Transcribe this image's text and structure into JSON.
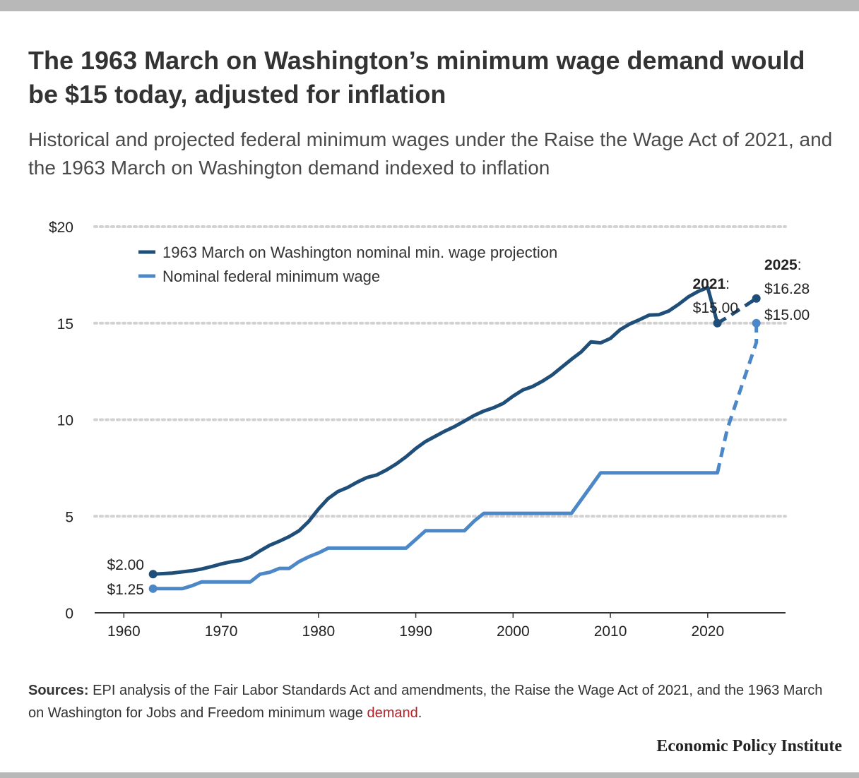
{
  "header": {
    "title": "The 1963 March on Washington’s minimum wage demand would be $15 today, adjusted for inflation",
    "subtitle": "Historical and projected federal minimum wages under the Raise the Wage Act of 2021, and the 1963 March on Washington demand indexed to inflation"
  },
  "footer": {
    "sources_lead": "Sources:",
    "sources_text": " EPI analysis of the Fair Labor Standards Act and amendments, the Raise the Wage Act of 2021, and the 1963 March on Washington for Jobs and Freedom minimum wage ",
    "sources_link": "demand",
    "sources_end": ".",
    "brand": "Economic Policy Institute"
  },
  "chart_data": {
    "type": "line",
    "grid": true,
    "legend_position": "top-left",
    "xlim": [
      1957,
      2028
    ],
    "ylim": [
      0,
      20
    ],
    "x_ticks": [
      {
        "value": 1960,
        "label": "1960"
      },
      {
        "value": 1970,
        "label": "1970"
      },
      {
        "value": 1980,
        "label": "1980"
      },
      {
        "value": 1990,
        "label": "1990"
      },
      {
        "value": 2000,
        "label": "2000"
      },
      {
        "value": 2010,
        "label": "2010"
      },
      {
        "value": 2020,
        "label": "2020"
      }
    ],
    "y_ticks": [
      {
        "value": 0,
        "label": "0"
      },
      {
        "value": 5,
        "label": "5"
      },
      {
        "value": 10,
        "label": "10"
      },
      {
        "value": 15,
        "label": "15"
      },
      {
        "value": 20,
        "label": "$20"
      }
    ],
    "series": [
      {
        "name": "1963 March on Washington nominal min. wage projection",
        "color": "#1f4e79",
        "points": [
          [
            1963,
            2.0
          ],
          [
            1964,
            2.03
          ],
          [
            1965,
            2.06
          ],
          [
            1966,
            2.12
          ],
          [
            1967,
            2.18
          ],
          [
            1968,
            2.27
          ],
          [
            1969,
            2.39
          ],
          [
            1970,
            2.53
          ],
          [
            1971,
            2.64
          ],
          [
            1972,
            2.72
          ],
          [
            1973,
            2.89
          ],
          [
            1974,
            3.21
          ],
          [
            1975,
            3.5
          ],
          [
            1976,
            3.71
          ],
          [
            1977,
            3.95
          ],
          [
            1978,
            4.25
          ],
          [
            1979,
            4.73
          ],
          [
            1980,
            5.37
          ],
          [
            1981,
            5.92
          ],
          [
            1982,
            6.28
          ],
          [
            1983,
            6.49
          ],
          [
            1984,
            6.77
          ],
          [
            1985,
            7.01
          ],
          [
            1986,
            7.14
          ],
          [
            1987,
            7.4
          ],
          [
            1988,
            7.71
          ],
          [
            1989,
            8.08
          ],
          [
            1990,
            8.51
          ],
          [
            1991,
            8.87
          ],
          [
            1992,
            9.14
          ],
          [
            1993,
            9.41
          ],
          [
            1994,
            9.65
          ],
          [
            1995,
            9.93
          ],
          [
            1996,
            10.22
          ],
          [
            1997,
            10.45
          ],
          [
            1998,
            10.62
          ],
          [
            1999,
            10.85
          ],
          [
            2000,
            11.22
          ],
          [
            2001,
            11.54
          ],
          [
            2002,
            11.72
          ],
          [
            2003,
            11.99
          ],
          [
            2004,
            12.31
          ],
          [
            2005,
            12.72
          ],
          [
            2006,
            13.13
          ],
          [
            2007,
            13.51
          ],
          [
            2008,
            14.03
          ],
          [
            2009,
            13.98
          ],
          [
            2010,
            14.21
          ],
          [
            2011,
            14.66
          ],
          [
            2012,
            14.96
          ],
          [
            2013,
            15.18
          ],
          [
            2014,
            15.42
          ],
          [
            2015,
            15.44
          ],
          [
            2016,
            15.63
          ],
          [
            2017,
            15.97
          ],
          [
            2018,
            16.36
          ],
          [
            2019,
            16.64
          ],
          [
            2020,
            16.85
          ],
          [
            2021,
            15.0
          ]
        ],
        "projected_points": [
          [
            2021,
            15.0
          ],
          [
            2022,
            15.3
          ],
          [
            2023,
            15.62
          ],
          [
            2024,
            15.95
          ],
          [
            2025,
            16.28
          ]
        ]
      },
      {
        "name": "Nominal federal minimum wage",
        "color": "#4c88c7",
        "points": [
          [
            1963,
            1.25
          ],
          [
            1964,
            1.25
          ],
          [
            1965,
            1.25
          ],
          [
            1966,
            1.25
          ],
          [
            1967,
            1.4
          ],
          [
            1968,
            1.6
          ],
          [
            1970,
            1.6
          ],
          [
            1973,
            1.6
          ],
          [
            1974,
            2.0
          ],
          [
            1975,
            2.1
          ],
          [
            1976,
            2.3
          ],
          [
            1977,
            2.3
          ],
          [
            1978,
            2.65
          ],
          [
            1979,
            2.9
          ],
          [
            1980,
            3.1
          ],
          [
            1981,
            3.35
          ],
          [
            1989,
            3.35
          ],
          [
            1990,
            3.8
          ],
          [
            1991,
            4.25
          ],
          [
            1995,
            4.25
          ],
          [
            1996,
            4.75
          ],
          [
            1997,
            5.15
          ],
          [
            2006,
            5.15
          ],
          [
            2007,
            5.85
          ],
          [
            2008,
            6.55
          ],
          [
            2009,
            7.25
          ],
          [
            2021,
            7.25
          ]
        ],
        "projected_points": [
          [
            2021,
            7.25
          ],
          [
            2022,
            9.5
          ],
          [
            2023,
            11.0
          ],
          [
            2024,
            12.5
          ],
          [
            2025,
            14.0
          ],
          [
            2025,
            15.0
          ]
        ]
      }
    ],
    "annotations": {
      "start_upper": "$2.00",
      "start_lower": "$1.25",
      "year_2021_label": "2021",
      "year_2021_value": "$15.00",
      "year_2025_label": "2025",
      "year_2025_upper": "$16.28",
      "year_2025_lower": "$15.00",
      "colon": ":"
    }
  }
}
